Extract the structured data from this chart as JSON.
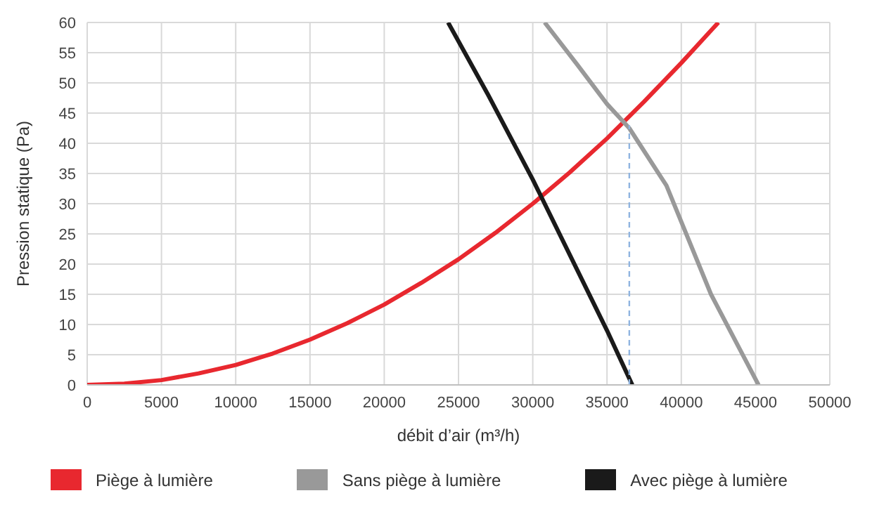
{
  "chart_data": {
    "type": "line",
    "xlabel": "débit d’air (m³/h)",
    "ylabel": "Pression statique (Pa)",
    "xlim": [
      0,
      50000
    ],
    "xticks": [
      0,
      5000,
      10000,
      15000,
      20000,
      25000,
      30000,
      35000,
      40000,
      45000,
      50000
    ],
    "ylim": [
      0,
      60
    ],
    "yticks": [
      0,
      5,
      10,
      15,
      20,
      25,
      30,
      35,
      40,
      45,
      50,
      55,
      60
    ],
    "grid": true,
    "legend": "bottom",
    "marker": "none",
    "line_style": "solid",
    "series": [
      {
        "name": "Piège à lumière",
        "color": "#e8282f",
        "x": [
          0,
          2500,
          5000,
          7500,
          10000,
          12500,
          15000,
          17500,
          20000,
          22500,
          25000,
          27500,
          30000,
          32500,
          35000,
          37500,
          40000,
          42500
        ],
        "values": [
          0,
          0.2,
          0.8,
          1.9,
          3.3,
          5.2,
          7.5,
          10.2,
          13.3,
          16.9,
          20.8,
          25.2,
          30,
          35.2,
          40.8,
          46.9,
          53.3,
          60
        ]
      },
      {
        "name": "Sans piège à lumière",
        "color": "#999999",
        "x": [
          30800,
          33000,
          35000,
          36500,
          39000,
          42000,
          45200
        ],
        "values": [
          60,
          53,
          46.5,
          42.5,
          33,
          15,
          0
        ]
      },
      {
        "name": "Avec piège à lumière",
        "color": "#1a1a1a",
        "x": [
          24300,
          27000,
          30000,
          33000,
          35000,
          36700
        ],
        "values": [
          60,
          48,
          34,
          19,
          9,
          0
        ]
      },
      {
        "color": "#8fb4e0",
        "line_style": "dashed",
        "x": [
          36500,
          36500
        ],
        "values": [
          0,
          43
        ]
      }
    ]
  }
}
